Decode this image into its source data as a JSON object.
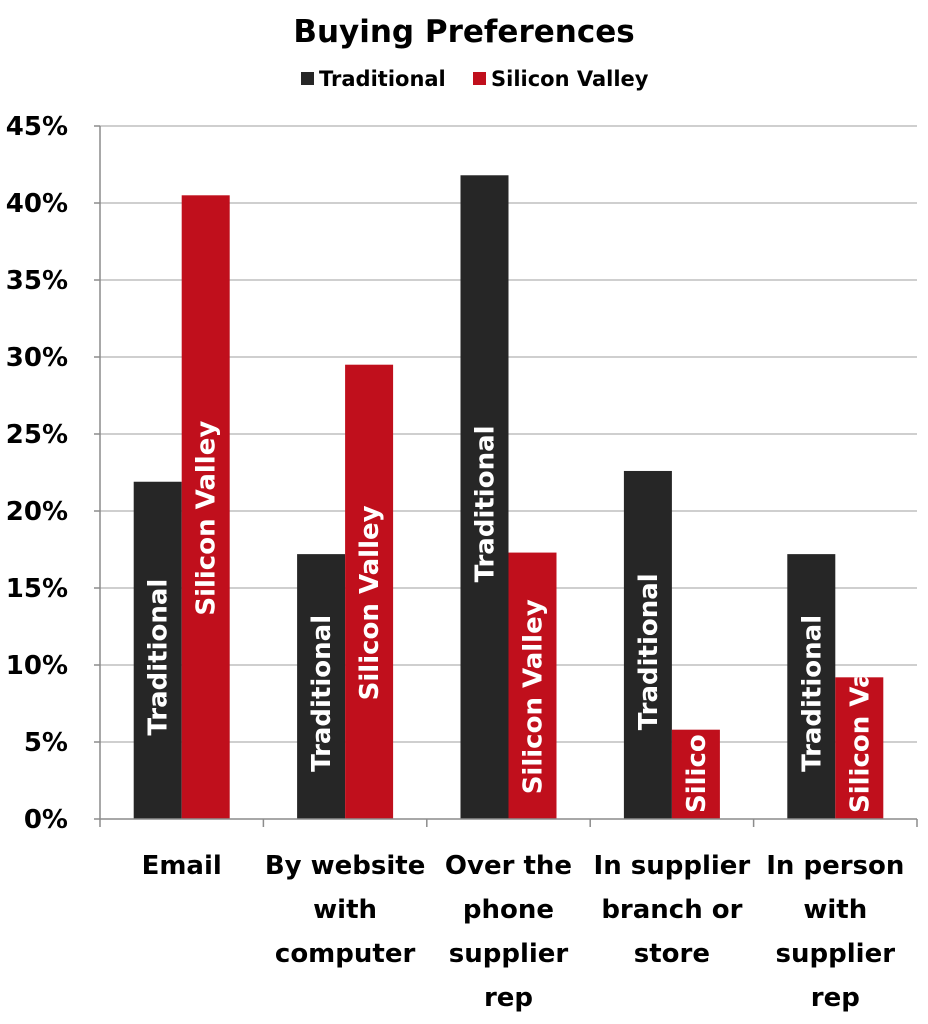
{
  "chart_data": {
    "type": "bar",
    "title": "Buying Preferences",
    "xlabel": "",
    "ylabel": "",
    "ylim": [
      0,
      45
    ],
    "yticks": [
      "0%",
      "5%",
      "10%",
      "15%",
      "20%",
      "25%",
      "30%",
      "35%",
      "40%",
      "45%"
    ],
    "grid": true,
    "legend_position": "top",
    "categories": [
      [
        "Email"
      ],
      [
        "By website",
        "with",
        "computer"
      ],
      [
        "Over the",
        "phone",
        "supplier",
        "rep"
      ],
      [
        "In supplier",
        "branch or",
        "store"
      ],
      [
        "In person",
        "with",
        "supplier",
        "rep"
      ]
    ],
    "series": [
      {
        "name": "Traditional",
        "color": "#262626",
        "values": [
          21.9,
          17.2,
          41.8,
          22.6,
          17.2
        ],
        "bar_labels": [
          "Traditional",
          "Traditional",
          "Traditional",
          "Traditional",
          "Traditional"
        ]
      },
      {
        "name": "Silicon Valley",
        "color": "#c00f1c",
        "values": [
          40.5,
          29.5,
          17.3,
          5.8,
          9.2
        ],
        "bar_labels": [
          "Silicon Valley",
          "Silicon Valley",
          "Silicon Valley",
          "Silico",
          "Silicon Va"
        ]
      }
    ]
  }
}
